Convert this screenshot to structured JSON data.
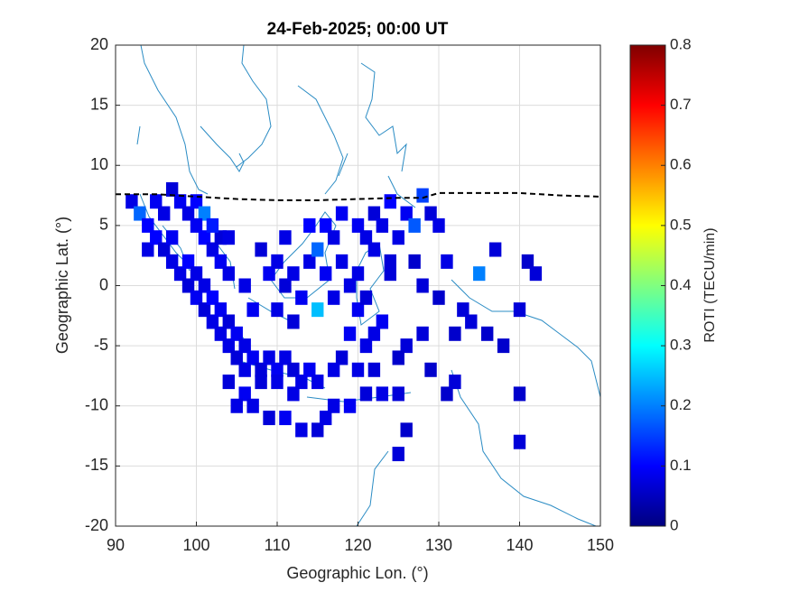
{
  "chart_data": {
    "type": "heatmap",
    "title": "24-Feb-2025; 00:00 UT",
    "x_label": "Geographic Lon. (°)",
    "y_label": "Geographic Lat. (°)",
    "colorbar_label": "ROTI (TECU/min)",
    "colormap": "jet",
    "grid": true,
    "xlim": [
      90,
      150
    ],
    "ylim": [
      -20,
      20
    ],
    "zlim": [
      0,
      0.8
    ],
    "xticks": [
      90,
      100,
      110,
      120,
      130,
      140,
      150
    ],
    "yticks": [
      -20,
      -15,
      -10,
      -5,
      0,
      5,
      10,
      15,
      20
    ],
    "zticks": [
      0,
      0.1,
      0.2,
      0.3,
      0.4,
      0.5,
      0.6,
      0.7,
      0.8
    ],
    "x": [
      92,
      93,
      94,
      95,
      96,
      97,
      98,
      99,
      100,
      101,
      94,
      95,
      96,
      97,
      97,
      98,
      99,
      99,
      100,
      100,
      101,
      101,
      102,
      102,
      103,
      103,
      104,
      104,
      105,
      105,
      106,
      100,
      101,
      102,
      103,
      103,
      104,
      102,
      104,
      106,
      107,
      108,
      109,
      110,
      111,
      112,
      113,
      114,
      115,
      108,
      110,
      112,
      106,
      104,
      105,
      107,
      109,
      111,
      113,
      115,
      117,
      119,
      121,
      123,
      125,
      116,
      109,
      110,
      111,
      112,
      113,
      114,
      115,
      116,
      117,
      118,
      110,
      112,
      115,
      117,
      116,
      118,
      108,
      106,
      107,
      114,
      111,
      119,
      120,
      121,
      122,
      123,
      120,
      124,
      121,
      119,
      118,
      120,
      122,
      117,
      120,
      121,
      122,
      123,
      124,
      125,
      126,
      127,
      122,
      124,
      128,
      129,
      130,
      127,
      128,
      130,
      131,
      133,
      132,
      134,
      136,
      135,
      137,
      138,
      140,
      141,
      142,
      140,
      140,
      131,
      132,
      126,
      125,
      129,
      126,
      125,
      128
    ],
    "y": [
      7,
      6,
      5,
      7,
      6,
      8,
      7,
      6,
      7,
      6,
      3,
      4,
      3,
      2,
      4,
      1,
      2,
      0,
      1,
      -1,
      0,
      -2,
      -1,
      -3,
      -2,
      -4,
      -3,
      -5,
      -4,
      -6,
      -5,
      5,
      4,
      3,
      4,
      2,
      1,
      5,
      4,
      -7,
      -6,
      -7,
      -6,
      -7,
      -6,
      -7,
      -8,
      -7,
      -8,
      -8,
      -8,
      -9,
      -9,
      -8,
      -10,
      -10,
      -11,
      -11,
      -12,
      -12,
      -10,
      -10,
      -9,
      -9,
      -9,
      -11,
      1,
      2,
      0,
      1,
      -1,
      2,
      3,
      5,
      4,
      6,
      -2,
      -3,
      -2,
      -1,
      1,
      2,
      3,
      0,
      -2,
      5,
      4,
      0,
      -2,
      -1,
      -4,
      -3,
      1,
      1,
      -5,
      -4,
      -6,
      -7,
      -7,
      -7,
      5,
      4,
      6,
      5,
      7,
      4,
      6,
      5,
      3,
      2,
      7.5,
      6,
      5,
      2,
      0,
      -1,
      2,
      -2,
      -4,
      -3,
      -4,
      1,
      3,
      -5,
      -2,
      2,
      1,
      -9,
      -13,
      -9,
      -8,
      -12,
      -14,
      -7,
      -5,
      -6,
      -4
    ],
    "values": [
      0.08,
      0.18,
      0.1,
      0.09,
      0.08,
      0.07,
      0.09,
      0.08,
      0.1,
      0.2,
      0.08,
      0.1,
      0.07,
      0.08,
      0.09,
      0.08,
      0.1,
      0.07,
      0.08,
      0.09,
      0.08,
      0.07,
      0.1,
      0.08,
      0.09,
      0.08,
      0.07,
      0.08,
      0.09,
      0.07,
      0.08,
      0.09,
      0.1,
      0.08,
      0.07,
      0.09,
      0.08,
      0.12,
      0.08,
      0.08,
      0.09,
      0.07,
      0.08,
      0.09,
      0.08,
      0.07,
      0.08,
      0.09,
      0.08,
      0.07,
      0.08,
      0.08,
      0.09,
      0.07,
      0.08,
      0.08,
      0.07,
      0.09,
      0.08,
      0.07,
      0.08,
      0.09,
      0.07,
      0.08,
      0.07,
      0.08,
      0.09,
      0.08,
      0.07,
      0.08,
      0.09,
      0.08,
      0.18,
      0.1,
      0.08,
      0.09,
      0.08,
      0.07,
      0.25,
      0.08,
      0.09,
      0.08,
      0.07,
      0.08,
      0.09,
      0.1,
      0.08,
      0.08,
      0.09,
      0.07,
      0.08,
      0.09,
      0.08,
      0.07,
      0.08,
      0.09,
      0.07,
      0.08,
      0.07,
      0.08,
      0.09,
      0.08,
      0.07,
      0.08,
      0.1,
      0.08,
      0.09,
      0.17,
      0.08,
      0.07,
      0.15,
      0.07,
      0.08,
      0.06,
      0.07,
      0.06,
      0.08,
      0.07,
      0.06,
      0.07,
      0.06,
      0.2,
      0.07,
      0.06,
      0.07,
      0.06,
      0.07,
      0.06,
      0.07,
      0.06,
      0.07,
      0.06,
      0.07,
      0.06,
      0.07,
      0.06,
      0.07
    ],
    "line": {
      "x": [
        90,
        95,
        100,
        105,
        110,
        115,
        120,
        125,
        128,
        130,
        135,
        140,
        145,
        150
      ],
      "y": [
        7.6,
        7.6,
        7.4,
        7.2,
        7.1,
        7.1,
        7.2,
        7.3,
        7.3,
        7.7,
        7.7,
        7.7,
        7.5,
        7.4
      ]
    }
  }
}
